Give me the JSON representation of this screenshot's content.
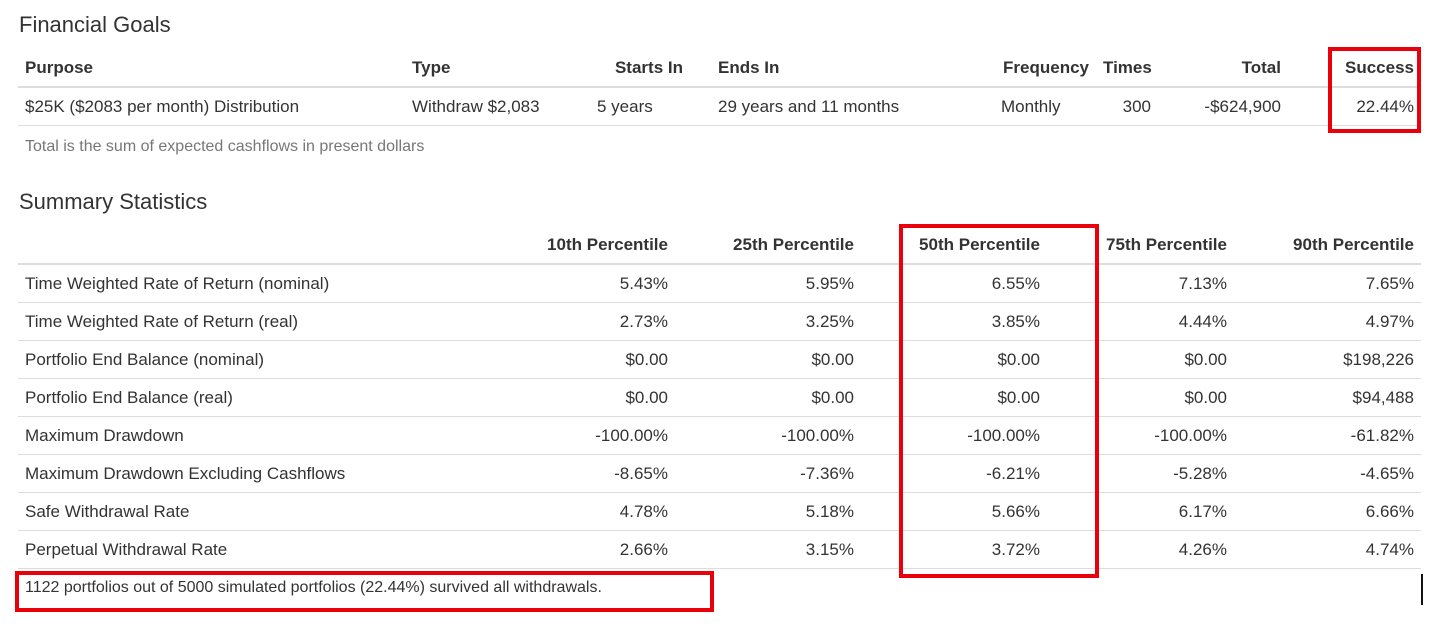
{
  "goals": {
    "title": "Financial Goals",
    "headers": {
      "purpose": "Purpose",
      "type": "Type",
      "starts_in": "Starts In",
      "ends_in": "Ends In",
      "frequency": "Frequency",
      "times": "Times",
      "total": "Total",
      "success": "Success"
    },
    "row": {
      "purpose": "$25K ($2083 per month) Distribution",
      "type": "Withdraw $2,083",
      "starts_in": "5 years",
      "ends_in": "29 years and 11 months",
      "frequency": "Monthly",
      "times": "300",
      "total": "-$624,900",
      "success": "22.44%"
    },
    "note": "Total is the sum of expected cashflows in present dollars"
  },
  "stats": {
    "title": "Summary Statistics",
    "headers": [
      "",
      "10th Percentile",
      "25th Percentile",
      "50th Percentile",
      "75th Percentile",
      "90th Percentile"
    ],
    "rows": [
      {
        "label": "Time Weighted Rate of Return (nominal)",
        "values": [
          "5.43%",
          "5.95%",
          "6.55%",
          "7.13%",
          "7.65%"
        ]
      },
      {
        "label": "Time Weighted Rate of Return (real)",
        "values": [
          "2.73%",
          "3.25%",
          "3.85%",
          "4.44%",
          "4.97%"
        ]
      },
      {
        "label": "Portfolio End Balance (nominal)",
        "values": [
          "$0.00",
          "$0.00",
          "$0.00",
          "$0.00",
          "$198,226"
        ]
      },
      {
        "label": "Portfolio End Balance (real)",
        "values": [
          "$0.00",
          "$0.00",
          "$0.00",
          "$0.00",
          "$94,488"
        ]
      },
      {
        "label": "Maximum Drawdown",
        "values": [
          "-100.00%",
          "-100.00%",
          "-100.00%",
          "-100.00%",
          "-61.82%"
        ]
      },
      {
        "label": "Maximum Drawdown Excluding Cashflows",
        "values": [
          "-8.65%",
          "-7.36%",
          "-6.21%",
          "-5.28%",
          "-4.65%"
        ]
      },
      {
        "label": "Safe Withdrawal Rate",
        "values": [
          "4.78%",
          "5.18%",
          "5.66%",
          "6.17%",
          "6.66%"
        ]
      },
      {
        "label": "Perpetual Withdrawal Rate",
        "values": [
          "2.66%",
          "3.15%",
          "3.72%",
          "4.26%",
          "4.74%"
        ]
      }
    ],
    "footer": "1122 portfolios out of 5000 simulated portfolios (22.44%) survived all withdrawals."
  },
  "highlight_color": "#e8000b"
}
